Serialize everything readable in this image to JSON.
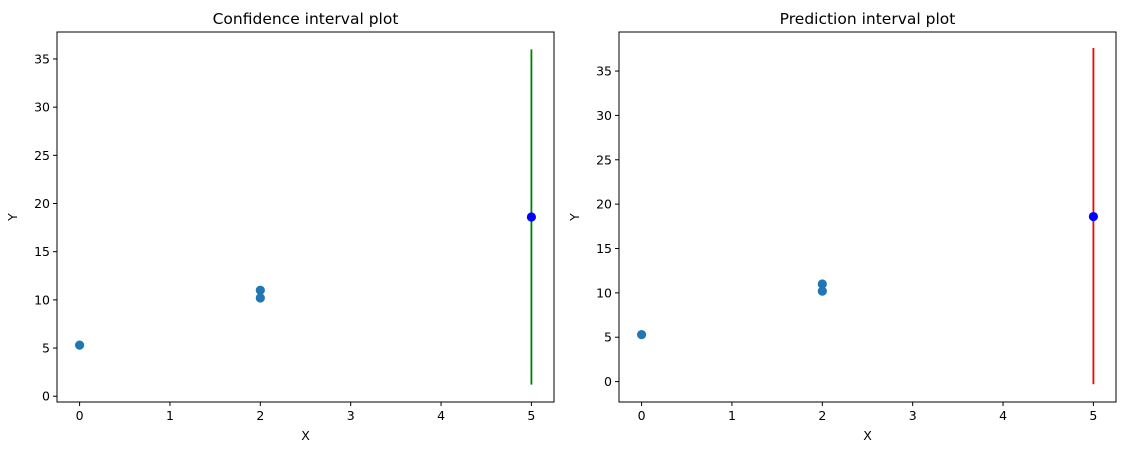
{
  "chart_data": [
    {
      "type": "scatter",
      "title": "Confidence interval plot",
      "xlabel": "X",
      "ylabel": "Y",
      "xlim": [
        -0.25,
        5.25
      ],
      "ylim": [
        -0.6,
        37.8
      ],
      "xticks": [
        "0",
        "1",
        "2",
        "3",
        "4",
        "5"
      ],
      "yticks": [
        "0",
        "5",
        "10",
        "15",
        "20",
        "25",
        "30",
        "35"
      ],
      "grid": false,
      "series": [
        {
          "x": [
            0,
            2,
            2
          ],
          "y": [
            5.3,
            11.0,
            10.2
          ],
          "color": "#1f77b4"
        },
        {
          "x": [
            5
          ],
          "y": [
            18.6
          ],
          "color": "#0000ff"
        }
      ],
      "interval": {
        "x": 5,
        "low": 1.2,
        "high": 36.0,
        "center": 18.6,
        "color": "#008000"
      }
    },
    {
      "type": "scatter",
      "title": "Prediction interval plot",
      "xlabel": "X",
      "ylabel": "Y",
      "xlim": [
        -0.25,
        5.25
      ],
      "ylim": [
        -2.3,
        39.4
      ],
      "xticks": [
        "0",
        "1",
        "2",
        "3",
        "4",
        "5"
      ],
      "yticks": [
        "0",
        "5",
        "10",
        "15",
        "20",
        "25",
        "30",
        "35"
      ],
      "grid": false,
      "series": [
        {
          "x": [
            0,
            2,
            2
          ],
          "y": [
            5.3,
            11.0,
            10.2
          ],
          "color": "#1f77b4"
        },
        {
          "x": [
            5
          ],
          "y": [
            18.6
          ],
          "color": "#0000ff"
        }
      ],
      "interval": {
        "x": 5,
        "low": -0.3,
        "high": 37.6,
        "center": 18.6,
        "color": "#ff0000"
      }
    }
  ]
}
